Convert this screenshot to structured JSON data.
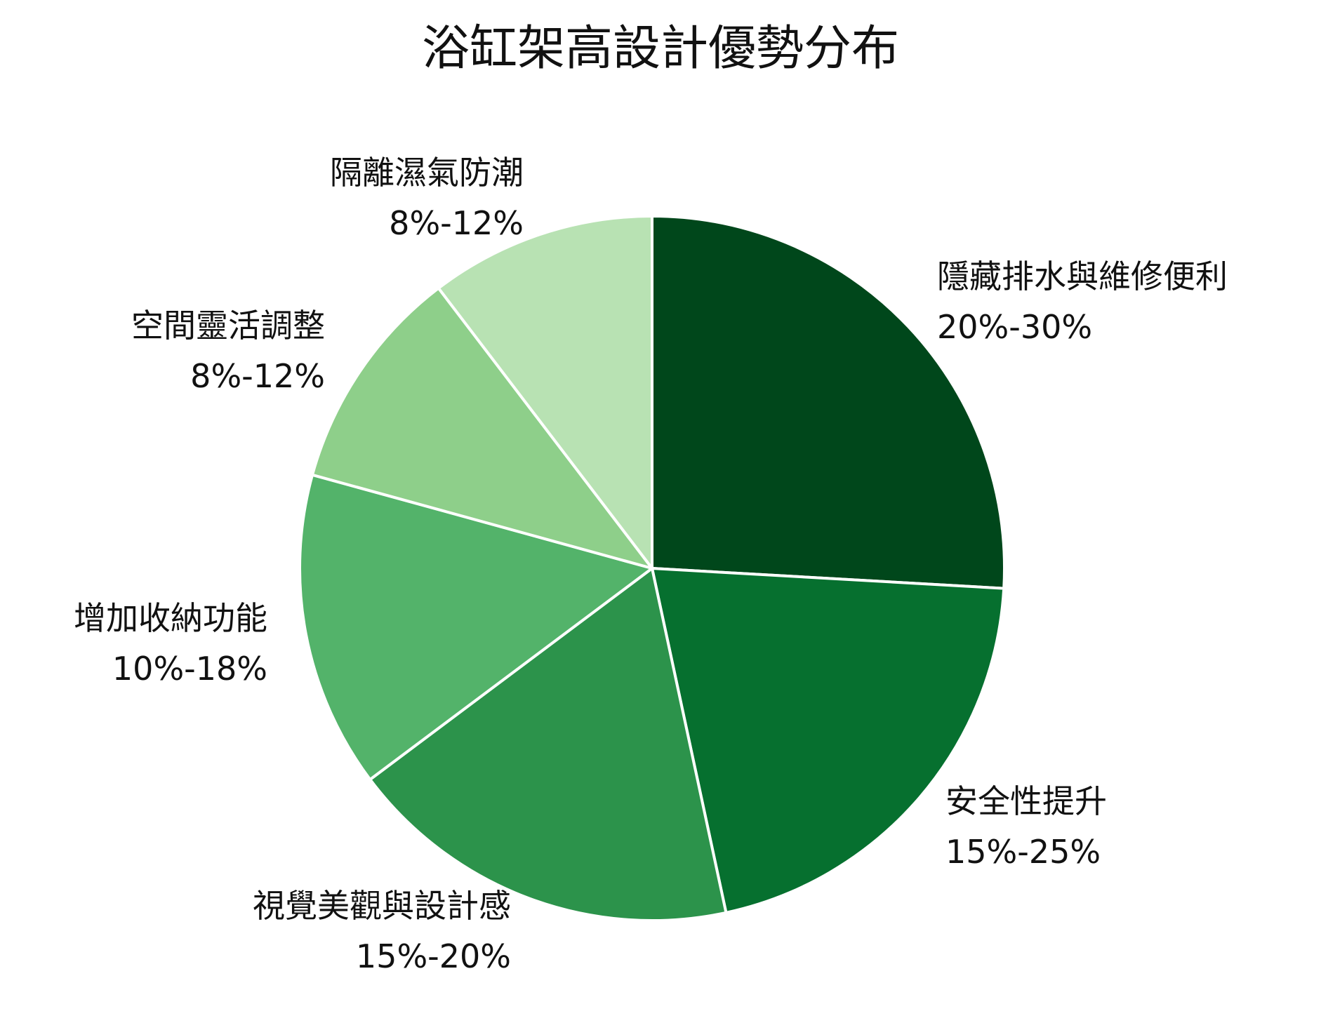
{
  "chart_data": {
    "type": "pie",
    "title": "浴缸架高設計優勢分布",
    "start_angle_deg": 0,
    "direction": "clockwise",
    "slice_border_color": "#ffffff",
    "slices": [
      {
        "label": "隱藏排水與維修便利",
        "value_text": "20%-30%",
        "value": 25,
        "color": "#00471B"
      },
      {
        "label": "安全性提升",
        "value_text": "15%-25%",
        "value": 20,
        "color": "#06702F"
      },
      {
        "label": "視覺美觀與設計感",
        "value_text": "15%-20%",
        "value": 17.5,
        "color": "#2C934B"
      },
      {
        "label": "增加收納功能",
        "value_text": "10%-18%",
        "value": 14,
        "color": "#53B36A"
      },
      {
        "label": "空間靈活調整",
        "value_text": "8%-12%",
        "value": 10,
        "color": "#8ECF8A"
      },
      {
        "label": "隔離濕氣防潮",
        "value_text": "8%-12%",
        "value": 10,
        "color": "#B8E2B3"
      }
    ]
  }
}
